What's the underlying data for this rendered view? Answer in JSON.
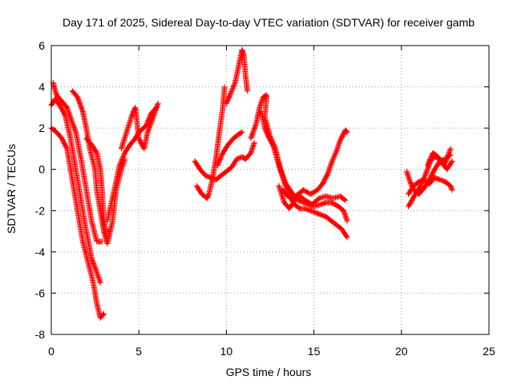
{
  "chart_data": {
    "type": "scatter",
    "title": "Day 171 of 2025, Sidereal Day-to-day VTEC variation (SDTVAR) for receiver gamb",
    "xlabel": "GPS time / hours",
    "ylabel": "SDTVAR / TECUs",
    "xlim": [
      0,
      25
    ],
    "ylim": [
      -8,
      6
    ],
    "xticks": [
      "0",
      "5",
      "10",
      "15",
      "20",
      "25"
    ],
    "yticks": [
      "-8",
      "-6",
      "-4",
      "-2",
      "0",
      "2",
      "4",
      "6"
    ],
    "grid": true,
    "marker": "+",
    "series_color": "#ff0000",
    "tracks": [
      [
        [
          0.0,
          2.0
        ],
        [
          0.3,
          1.8
        ],
        [
          0.6,
          1.5
        ],
        [
          0.9,
          1.0
        ],
        [
          1.2,
          -0.5
        ],
        [
          1.5,
          -2.0
        ],
        [
          1.8,
          -3.5
        ],
        [
          2.1,
          -4.5
        ],
        [
          2.4,
          -5.5
        ],
        [
          2.6,
          -6.5
        ],
        [
          2.8,
          -7.2
        ],
        [
          3.0,
          -7.0
        ]
      ],
      [
        [
          0.0,
          3.1
        ],
        [
          0.2,
          3.4
        ],
        [
          0.5,
          3.1
        ],
        [
          0.8,
          2.6
        ],
        [
          1.1,
          1.5
        ],
        [
          1.4,
          0.0
        ],
        [
          1.7,
          -1.5
        ],
        [
          2.0,
          -3.0
        ],
        [
          2.3,
          -4.3
        ],
        [
          2.6,
          -5.0
        ],
        [
          2.8,
          -5.5
        ]
      ],
      [
        [
          0.1,
          4.2
        ],
        [
          0.3,
          3.6
        ],
        [
          0.6,
          3.3
        ],
        [
          0.9,
          3.0
        ],
        [
          1.1,
          2.5
        ],
        [
          1.4,
          1.8
        ],
        [
          1.7,
          0.5
        ],
        [
          2.0,
          -1.0
        ],
        [
          2.3,
          -2.5
        ],
        [
          2.6,
          -3.5
        ],
        [
          2.9,
          -3.5
        ]
      ],
      [
        [
          1.2,
          3.8
        ],
        [
          1.5,
          3.5
        ],
        [
          1.8,
          2.8
        ],
        [
          2.0,
          2.0
        ],
        [
          2.2,
          1.0
        ],
        [
          2.5,
          0.0
        ],
        [
          2.6,
          -1.0
        ],
        [
          2.8,
          -2.0
        ],
        [
          3.0,
          -3.0
        ],
        [
          3.2,
          -3.6
        ],
        [
          3.5,
          -2.5
        ],
        [
          3.7,
          -1.0
        ],
        [
          4.0,
          0.0
        ],
        [
          4.2,
          0.5
        ]
      ],
      [
        [
          2.0,
          1.5
        ],
        [
          2.3,
          1.2
        ],
        [
          2.6,
          0.8
        ],
        [
          2.8,
          0.0
        ],
        [
          2.9,
          -1.0
        ],
        [
          3.0,
          -2.5
        ],
        [
          3.1,
          -3.0
        ],
        [
          3.3,
          -3.0
        ]
      ],
      [
        [
          3.2,
          -2.5
        ],
        [
          3.6,
          -1.0
        ],
        [
          3.9,
          0.2
        ],
        [
          4.2,
          0.8
        ],
        [
          4.5,
          1.2
        ],
        [
          4.8,
          1.5
        ],
        [
          5.0,
          1.8
        ],
        [
          5.4,
          2.1
        ],
        [
          5.7,
          2.7
        ],
        [
          6.0,
          3.0
        ]
      ],
      [
        [
          4.0,
          1.0
        ],
        [
          4.3,
          1.8
        ],
        [
          4.6,
          2.6
        ],
        [
          4.8,
          3.0
        ],
        [
          5.0,
          1.5
        ],
        [
          5.3,
          1.0
        ],
        [
          5.5,
          1.8
        ],
        [
          5.8,
          2.5
        ],
        [
          6.1,
          3.2
        ]
      ],
      [
        [
          8.2,
          0.4
        ],
        [
          8.5,
          0.0
        ],
        [
          8.8,
          -0.3
        ],
        [
          9.1,
          -0.4
        ],
        [
          9.4,
          -0.5
        ],
        [
          9.7,
          -0.3
        ],
        [
          10.0,
          -0.1
        ],
        [
          10.3,
          0.1
        ],
        [
          10.6,
          0.5
        ],
        [
          10.9,
          0.6
        ],
        [
          11.1,
          0.5
        ],
        [
          11.4,
          0.8
        ],
        [
          11.6,
          1.3
        ]
      ],
      [
        [
          8.3,
          -0.8
        ],
        [
          8.6,
          -1.2
        ],
        [
          8.9,
          -1.4
        ],
        [
          9.0,
          -1.2
        ],
        [
          9.2,
          -0.5
        ],
        [
          9.4,
          0.5
        ],
        [
          9.6,
          1.8
        ],
        [
          9.8,
          3.0
        ],
        [
          9.9,
          4.0
        ]
      ],
      [
        [
          9.5,
          0.2
        ],
        [
          9.8,
          0.8
        ],
        [
          10.1,
          1.2
        ],
        [
          10.4,
          1.5
        ],
        [
          10.7,
          1.7
        ],
        [
          10.9,
          1.8
        ]
      ],
      [
        [
          10.0,
          3.2
        ],
        [
          10.2,
          3.6
        ],
        [
          10.5,
          4.2
        ],
        [
          10.7,
          5.0
        ],
        [
          10.9,
          5.8
        ],
        [
          11.0,
          5.5
        ],
        [
          11.1,
          4.5
        ],
        [
          11.2,
          3.8
        ]
      ],
      [
        [
          11.4,
          1.5
        ],
        [
          11.7,
          2.2
        ],
        [
          11.9,
          3.0
        ],
        [
          12.1,
          3.5
        ],
        [
          12.3,
          3.6
        ],
        [
          12.2,
          2.5
        ],
        [
          12.5,
          1.6
        ],
        [
          12.8,
          1.0
        ],
        [
          13.1,
          0.0
        ],
        [
          13.4,
          -0.7
        ],
        [
          13.8,
          -1.2
        ],
        [
          14.1,
          -1.5
        ],
        [
          14.4,
          -1.6
        ],
        [
          14.7,
          -1.7
        ],
        [
          15.0,
          -1.8
        ],
        [
          15.4,
          -1.7
        ],
        [
          15.7,
          -1.6
        ],
        [
          16.0,
          -1.6
        ],
        [
          16.4,
          -1.8
        ],
        [
          16.7,
          -2.0
        ],
        [
          16.9,
          -2.5
        ]
      ],
      [
        [
          12.0,
          2.8
        ],
        [
          12.2,
          2.0
        ],
        [
          12.4,
          1.6
        ],
        [
          12.7,
          1.1
        ],
        [
          13.0,
          0.2
        ],
        [
          13.3,
          -0.6
        ],
        [
          13.6,
          -1.3
        ],
        [
          13.9,
          -1.7
        ],
        [
          14.2,
          -1.9
        ],
        [
          14.5,
          -1.9
        ],
        [
          14.8,
          -2.0
        ],
        [
          15.1,
          -2.1
        ],
        [
          15.4,
          -2.2
        ],
        [
          15.7,
          -2.3
        ],
        [
          16.0,
          -2.5
        ],
        [
          16.3,
          -2.7
        ],
        [
          16.6,
          -2.9
        ],
        [
          16.9,
          -3.3
        ]
      ],
      [
        [
          13.2,
          -1.0
        ],
        [
          13.5,
          -1.3
        ],
        [
          13.8,
          -1.4
        ],
        [
          14.1,
          -1.2
        ],
        [
          14.4,
          -1.0
        ],
        [
          14.8,
          -1.2
        ],
        [
          15.2,
          -1.0
        ],
        [
          15.5,
          -0.7
        ],
        [
          15.8,
          -0.2
        ],
        [
          16.0,
          0.3
        ],
        [
          16.3,
          0.9
        ],
        [
          16.5,
          1.4
        ],
        [
          16.8,
          1.9
        ],
        [
          16.9,
          1.8
        ]
      ],
      [
        [
          13.0,
          -0.8
        ],
        [
          13.3,
          -1.6
        ],
        [
          13.6,
          -1.9
        ],
        [
          13.9,
          -1.5
        ],
        [
          14.2,
          -1.3
        ],
        [
          14.5,
          -1.5
        ],
        [
          14.9,
          -1.7
        ],
        [
          15.3,
          -1.4
        ],
        [
          15.7,
          -1.3
        ],
        [
          16.1,
          -1.4
        ],
        [
          16.5,
          -1.3
        ],
        [
          16.8,
          -1.5
        ]
      ],
      [
        [
          20.3,
          -0.1
        ],
        [
          20.5,
          -0.6
        ],
        [
          20.7,
          -1.0
        ],
        [
          21.0,
          -1.2
        ],
        [
          21.3,
          -0.9
        ],
        [
          21.6,
          -0.5
        ],
        [
          21.9,
          0.0
        ],
        [
          22.2,
          0.4
        ],
        [
          22.5,
          0.5
        ],
        [
          22.8,
          0.7
        ]
      ],
      [
        [
          20.4,
          -1.8
        ],
        [
          20.6,
          -1.5
        ],
        [
          20.8,
          -1.2
        ],
        [
          21.1,
          -0.8
        ],
        [
          21.4,
          -0.2
        ],
        [
          21.7,
          0.5
        ],
        [
          22.0,
          0.6
        ],
        [
          22.3,
          0.4
        ],
        [
          22.6,
          0.0
        ],
        [
          22.9,
          0.4
        ]
      ],
      [
        [
          20.4,
          -1.2
        ],
        [
          20.7,
          -0.8
        ],
        [
          21.0,
          -0.6
        ],
        [
          21.3,
          -0.5
        ],
        [
          21.6,
          -0.7
        ],
        [
          21.9,
          -0.4
        ],
        [
          22.2,
          -0.5
        ],
        [
          22.5,
          -0.6
        ],
        [
          22.8,
          -0.8
        ],
        [
          22.9,
          -1.0
        ]
      ],
      [
        [
          21.5,
          0.2
        ],
        [
          21.8,
          0.8
        ],
        [
          22.1,
          0.6
        ],
        [
          22.4,
          0.2
        ],
        [
          22.6,
          0.5
        ],
        [
          22.8,
          1.0
        ]
      ]
    ]
  }
}
